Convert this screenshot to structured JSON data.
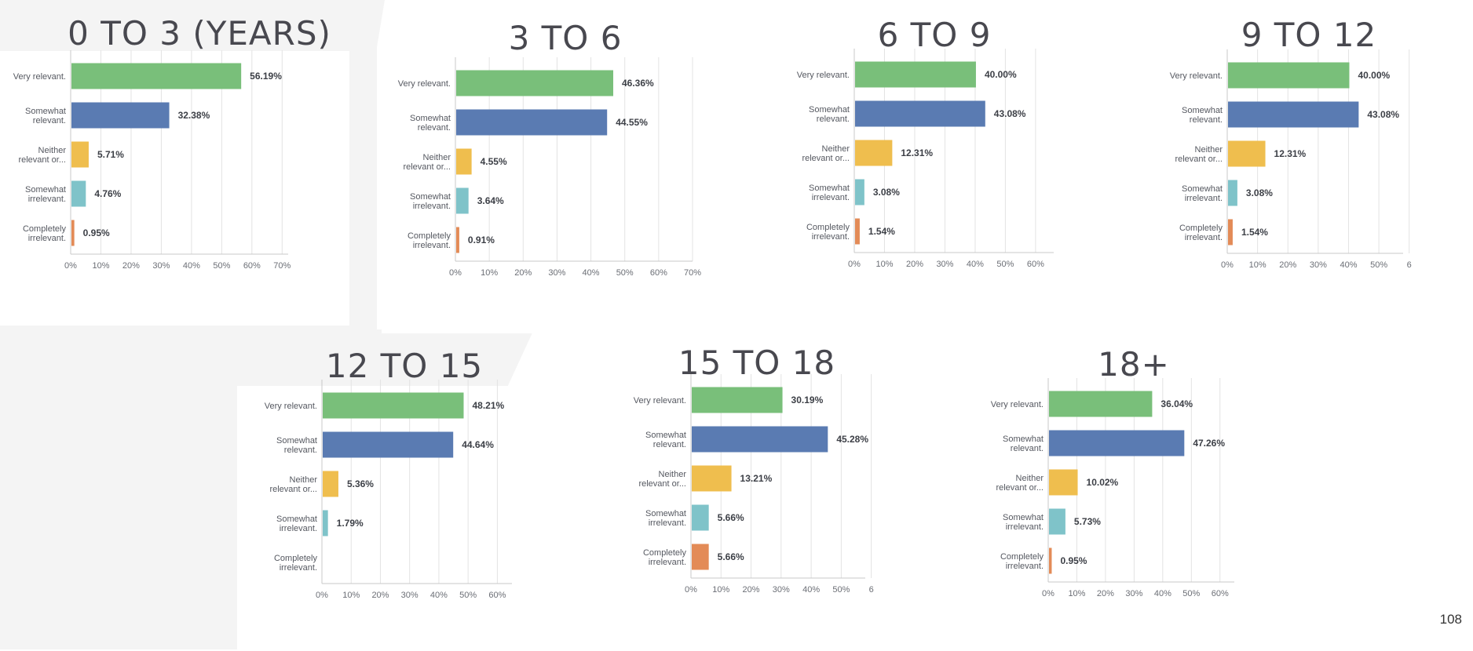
{
  "page_number": "108",
  "colors": {
    "very_relevant": "#79bf7a",
    "somewhat_relevant": "#5a7bb2",
    "neither": "#efbe4e",
    "somewhat_irrelevant": "#7fc3c9",
    "completely_irrelevant": "#e38b57"
  },
  "category_labels": [
    [
      "Very relevant."
    ],
    [
      "Somewhat",
      "relevant."
    ],
    [
      "Neither",
      "relevant or..."
    ],
    [
      "Somewhat",
      "irrelevant."
    ],
    [
      "Completely",
      "irrelevant."
    ]
  ],
  "chart_data": [
    {
      "type": "bar",
      "title": "0 TO 3 (YEARS)",
      "categories": [
        "Very relevant.",
        "Somewhat relevant.",
        "Neither relevant or...",
        "Somewhat irrelevant.",
        "Completely irrelevant."
      ],
      "values": [
        56.19,
        32.38,
        5.71,
        4.76,
        0.95
      ],
      "value_labels": [
        "56.19%",
        "32.38%",
        "5.71%",
        "4.76%",
        "0.95%"
      ],
      "x_ticks": [
        "0%",
        "10%",
        "20%",
        "30%",
        "40%",
        "50%",
        "60%",
        "70%"
      ],
      "xlim": [
        0,
        72
      ],
      "orientation": "horizontal",
      "grid": true
    },
    {
      "type": "bar",
      "title": "3 TO 6",
      "categories": [
        "Very relevant.",
        "Somewhat relevant.",
        "Neither relevant or...",
        "Somewhat irrelevant.",
        "Completely irrelevant."
      ],
      "values": [
        46.36,
        44.55,
        4.55,
        3.64,
        0.91
      ],
      "value_labels": [
        "46.36%",
        "44.55%",
        "4.55%",
        "3.64%",
        "0.91%"
      ],
      "x_ticks": [
        "0%",
        "10%",
        "20%",
        "30%",
        "40%",
        "50%",
        "60%",
        "70%"
      ],
      "xlim": [
        0,
        70
      ],
      "orientation": "horizontal",
      "grid": true
    },
    {
      "type": "bar",
      "title": "6 TO 9",
      "categories": [
        "Very relevant.",
        "Somewhat relevant.",
        "Neither relevant or...",
        "Somewhat irrelevant.",
        "Completely irrelevant."
      ],
      "values": [
        40.0,
        43.08,
        12.31,
        3.08,
        1.54
      ],
      "value_labels": [
        "40.00%",
        "43.08%",
        "12.31%",
        "3.08%",
        "1.54%"
      ],
      "x_ticks": [
        "0%",
        "10%",
        "20%",
        "30%",
        "40%",
        "50%",
        "60%"
      ],
      "xlim": [
        0,
        66
      ],
      "orientation": "horizontal",
      "grid": true
    },
    {
      "type": "bar",
      "title": "9 TO 12",
      "categories": [
        "Very relevant.",
        "Somewhat relevant.",
        "Neither relevant or...",
        "Somewhat irrelevant.",
        "Completely irrelevant."
      ],
      "values": [
        40.0,
        43.08,
        12.31,
        3.08,
        1.54
      ],
      "value_labels": [
        "40.00%",
        "43.08%",
        "12.31%",
        "3.08%",
        "1.54%"
      ],
      "x_ticks": [
        "0%",
        "10%",
        "20%",
        "30%",
        "40%",
        "50%",
        "6"
      ],
      "xlim": [
        0,
        58
      ],
      "orientation": "horizontal",
      "grid": true
    },
    {
      "type": "bar",
      "title": "12 TO 15",
      "categories": [
        "Very relevant.",
        "Somewhat relevant.",
        "Neither relevant or...",
        "Somewhat irrelevant.",
        "Completely irrelevant."
      ],
      "values": [
        48.21,
        44.64,
        5.36,
        1.79,
        0
      ],
      "value_labels": [
        "48.21%",
        "44.64%",
        "5.36%",
        "1.79%",
        ""
      ],
      "x_ticks": [
        "0%",
        "10%",
        "20%",
        "30%",
        "40%",
        "50%",
        "60%"
      ],
      "xlim": [
        0,
        65
      ],
      "orientation": "horizontal",
      "grid": true
    },
    {
      "type": "bar",
      "title": "15 TO 18",
      "categories": [
        "Very relevant.",
        "Somewhat relevant.",
        "Neither relevant or...",
        "Somewhat irrelevant.",
        "Completely irrelevant."
      ],
      "values": [
        30.19,
        45.28,
        13.21,
        5.66,
        5.66
      ],
      "value_labels": [
        "30.19%",
        "45.28%",
        "13.21%",
        "5.66%",
        "5.66%"
      ],
      "x_ticks": [
        "0%",
        "10%",
        "20%",
        "30%",
        "40%",
        "50%",
        "6"
      ],
      "xlim": [
        0,
        58
      ],
      "orientation": "horizontal",
      "grid": true
    },
    {
      "type": "bar",
      "title": "18+",
      "categories": [
        "Very relevant.",
        "Somewhat relevant.",
        "Neither relevant or...",
        "Somewhat irrelevant.",
        "Completely irrelevant."
      ],
      "values": [
        36.04,
        47.26,
        10.02,
        5.73,
        0.95
      ],
      "value_labels": [
        "36.04%",
        "47.26%",
        "10.02%",
        "5.73%",
        "0.95%"
      ],
      "x_ticks": [
        "0%",
        "10%",
        "20%",
        "30%",
        "40%",
        "50%",
        "60%"
      ],
      "xlim": [
        0,
        65
      ],
      "orientation": "horizontal",
      "grid": true
    }
  ]
}
